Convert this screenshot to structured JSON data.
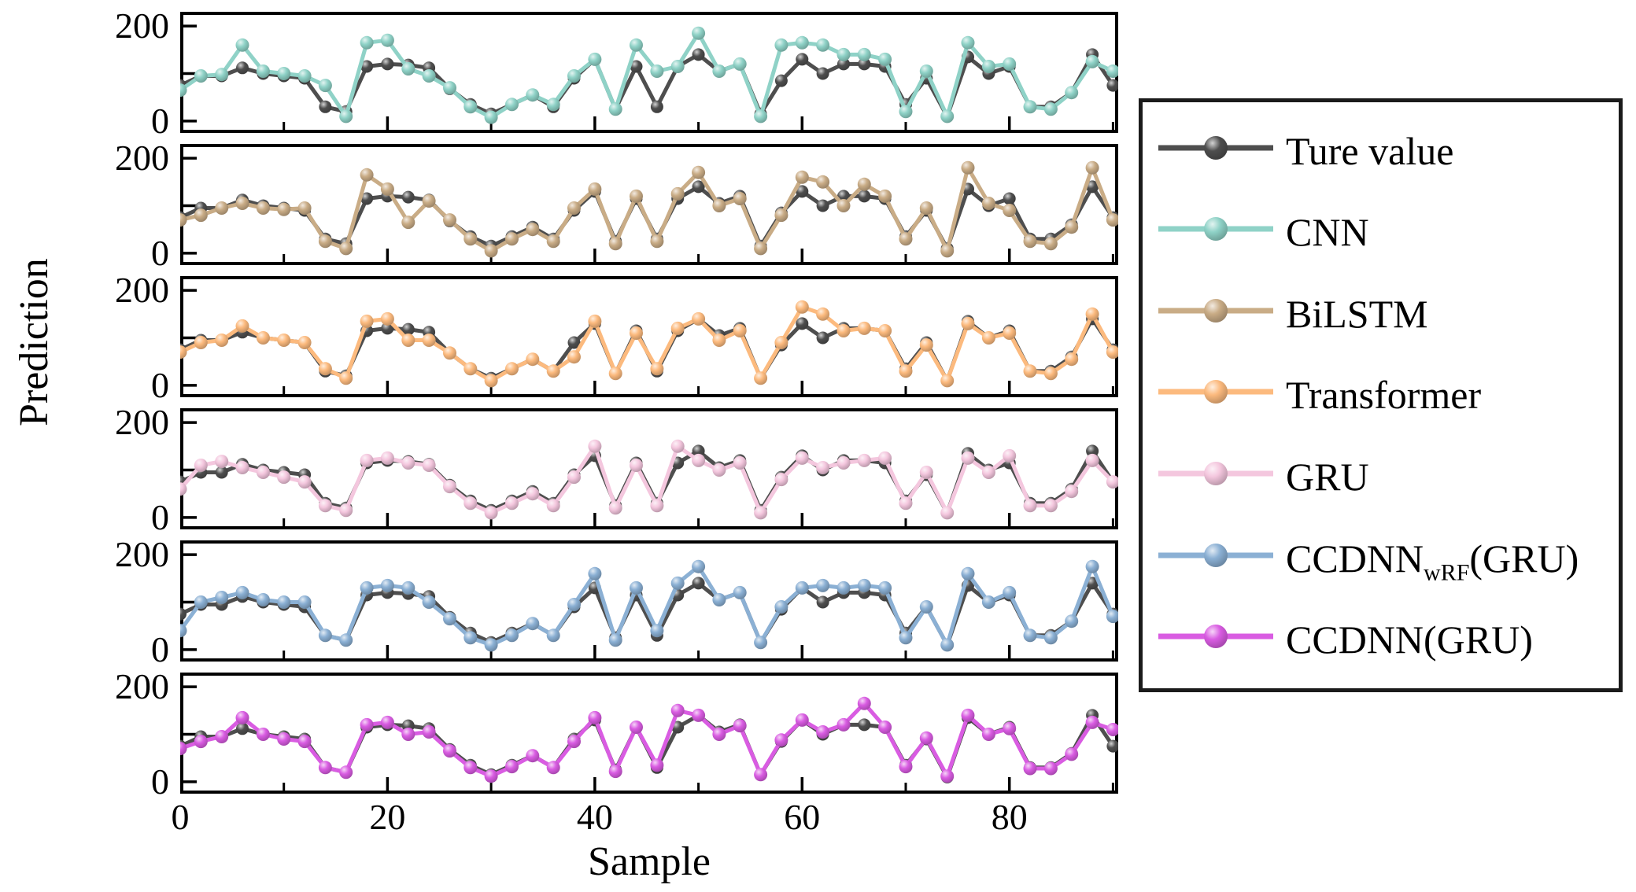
{
  "axes": {
    "x_label": "Sample",
    "y_label": "Prediction",
    "x_tick_labels": [
      "0",
      "20",
      "40",
      "60",
      "80"
    ],
    "y_tick_top": "200",
    "y_tick_bottom": "0"
  },
  "legend": {
    "entries": [
      {
        "main": "Ture value",
        "sub": "",
        "rest": "",
        "color": "#4e4e4e"
      },
      {
        "main": "CNN",
        "sub": "",
        "rest": "",
        "color": "#8fd2c7"
      },
      {
        "main": "BiLSTM",
        "sub": "",
        "rest": "",
        "color": "#c9ac86"
      },
      {
        "main": "Transformer",
        "sub": "",
        "rest": "",
        "color": "#fcba7e"
      },
      {
        "main": "GRU",
        "sub": "",
        "rest": "",
        "color": "#f4c7de"
      },
      {
        "main": "CCDNN",
        "sub": "wRF",
        "rest": "(GRU)",
        "color": "#8bb0d4"
      },
      {
        "main": "CCDNN(GRU)",
        "sub": "",
        "rest": "",
        "color": "#d95ce2"
      }
    ]
  },
  "chart_data": {
    "type": "line",
    "title": "",
    "xlabel": "Sample",
    "ylabel": "Prediction",
    "x_ticks": [
      0,
      20,
      40,
      60,
      80
    ],
    "x_minor_ticks": [
      10,
      30,
      50,
      70,
      90
    ],
    "y_ticks": [
      0,
      100,
      200
    ],
    "y_tick_labels_shown": [
      "0",
      "200"
    ],
    "xlim": [
      0,
      90.5
    ],
    "ylim": [
      -25,
      230
    ],
    "legend_position": "right-outside",
    "grid": false,
    "x": [
      0,
      2,
      4,
      6,
      8,
      10,
      12,
      14,
      16,
      18,
      20,
      22,
      24,
      26,
      28,
      30,
      32,
      34,
      36,
      38,
      40,
      42,
      44,
      46,
      48,
      50,
      52,
      54,
      56,
      58,
      60,
      62,
      64,
      66,
      68,
      70,
      72,
      74,
      76,
      78,
      80,
      82,
      84,
      86,
      88,
      90
    ],
    "true_series": {
      "name": "Ture value",
      "color": "#4e4e4e",
      "values": [
        75,
        95,
        95,
        112,
        100,
        95,
        90,
        30,
        20,
        115,
        120,
        118,
        112,
        68,
        35,
        15,
        35,
        55,
        30,
        90,
        130,
        25,
        115,
        30,
        115,
        140,
        105,
        120,
        15,
        85,
        130,
        100,
        120,
        120,
        115,
        35,
        90,
        10,
        135,
        100,
        115,
        30,
        30,
        60,
        140,
        75
      ]
    },
    "subplots": [
      {
        "model": "CNN",
        "color": "#8fd2c7",
        "values": [
          65,
          95,
          98,
          160,
          105,
          100,
          95,
          75,
          10,
          165,
          170,
          110,
          95,
          70,
          30,
          8,
          35,
          55,
          35,
          95,
          130,
          25,
          160,
          105,
          115,
          185,
          105,
          120,
          10,
          160,
          165,
          160,
          140,
          140,
          130,
          20,
          105,
          10,
          165,
          115,
          120,
          30,
          25,
          60,
          125,
          105
        ]
      },
      {
        "model": "BiLSTM",
        "color": "#c9ac86",
        "values": [
          70,
          80,
          95,
          105,
          95,
          92,
          95,
          25,
          10,
          165,
          135,
          65,
          110,
          70,
          30,
          5,
          30,
          50,
          25,
          95,
          135,
          20,
          120,
          25,
          125,
          170,
          100,
          115,
          10,
          80,
          160,
          150,
          100,
          145,
          120,
          30,
          95,
          5,
          180,
          105,
          90,
          25,
          20,
          55,
          180,
          70
        ]
      },
      {
        "model": "Transformer",
        "color": "#fcba7e",
        "values": [
          70,
          90,
          95,
          125,
          100,
          95,
          90,
          35,
          15,
          135,
          140,
          95,
          95,
          68,
          35,
          10,
          35,
          55,
          30,
          60,
          135,
          25,
          110,
          35,
          120,
          140,
          95,
          115,
          15,
          90,
          165,
          150,
          115,
          120,
          115,
          30,
          85,
          10,
          130,
          100,
          110,
          30,
          25,
          55,
          150,
          70
        ]
      },
      {
        "model": "GRU",
        "color": "#f4c7de",
        "values": [
          60,
          110,
          118,
          105,
          95,
          85,
          75,
          25,
          15,
          120,
          125,
          115,
          110,
          65,
          30,
          10,
          30,
          50,
          25,
          85,
          150,
          20,
          110,
          25,
          150,
          120,
          100,
          115,
          10,
          80,
          125,
          105,
          115,
          120,
          125,
          30,
          95,
          10,
          125,
          95,
          130,
          25,
          25,
          55,
          120,
          75
        ]
      },
      {
        "model": "CCDNNwRF(GRU)",
        "color": "#8bb0d4",
        "values": [
          40,
          100,
          110,
          120,
          105,
          100,
          100,
          30,
          20,
          130,
          135,
          130,
          100,
          65,
          25,
          10,
          30,
          55,
          30,
          95,
          160,
          20,
          130,
          40,
          140,
          175,
          105,
          120,
          15,
          90,
          130,
          135,
          130,
          135,
          130,
          25,
          90,
          10,
          160,
          100,
          120,
          30,
          25,
          60,
          175,
          70
        ]
      },
      {
        "model": "CCDNN(GRU)",
        "color": "#d95ce2",
        "values": [
          70,
          85,
          95,
          135,
          100,
          90,
          85,
          30,
          20,
          120,
          125,
          100,
          105,
          65,
          30,
          12,
          32,
          55,
          30,
          85,
          135,
          22,
          115,
          35,
          150,
          140,
          100,
          118,
          15,
          88,
          130,
          105,
          120,
          165,
          115,
          32,
          92,
          12,
          140,
          100,
          112,
          28,
          28,
          58,
          125,
          110
        ]
      }
    ]
  }
}
